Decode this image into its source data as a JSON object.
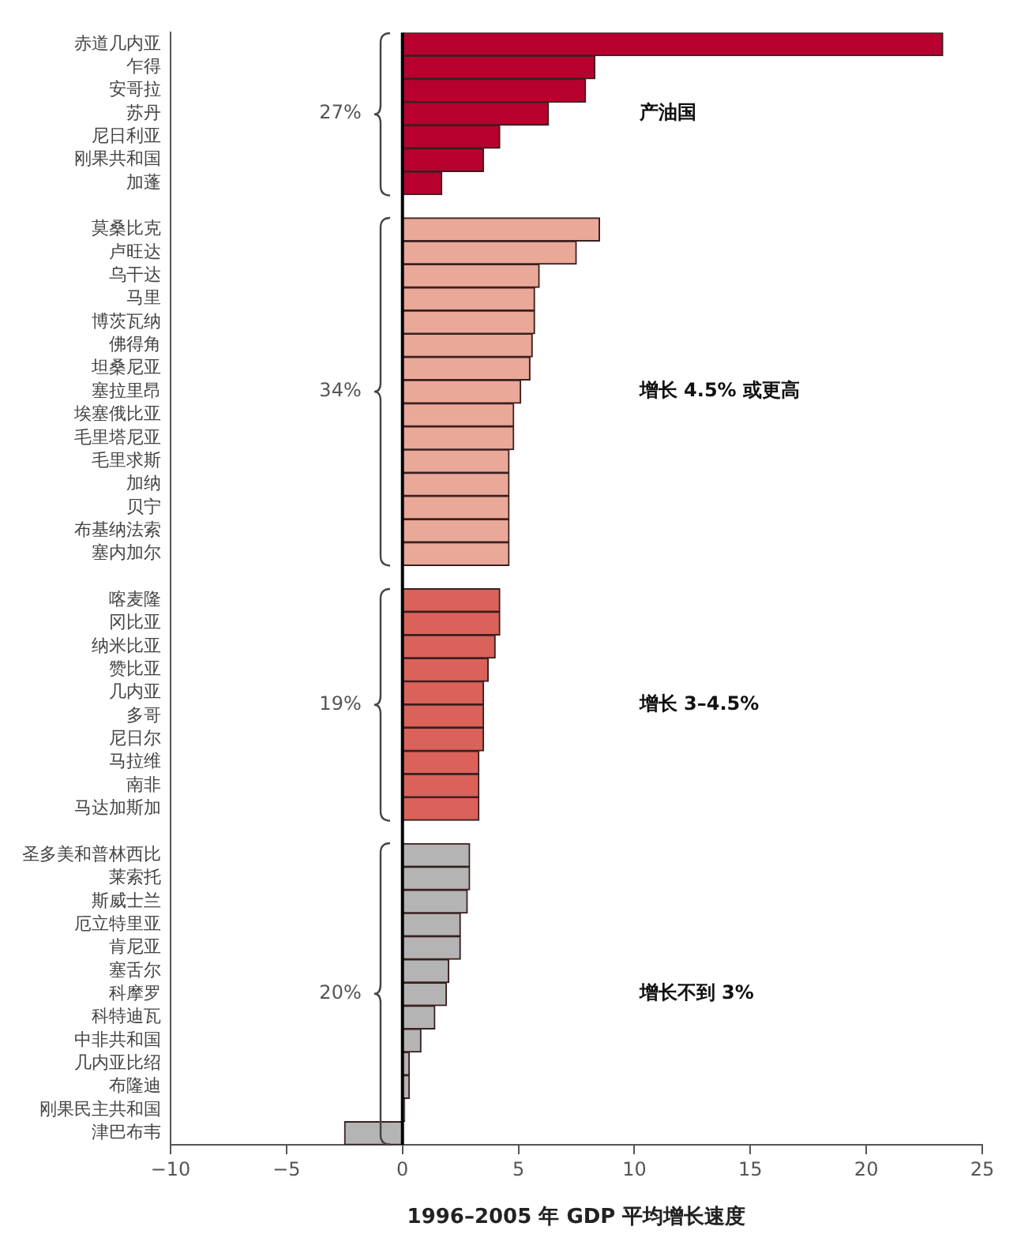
{
  "chart_data": {
    "type": "bar",
    "orientation": "horizontal",
    "xlabel": "1996–2005 年 GDP 平均增长速度",
    "categories": [
      "赤道几内亚",
      "乍得",
      "安哥拉",
      "苏丹",
      "尼日利亚",
      "刚果共和国",
      "加蓬",
      null,
      "莫桑比克",
      "卢旺达",
      "乌干达",
      "马里",
      "博茨瓦纳",
      "佛得角",
      "坦桑尼亚",
      "塞拉里昂",
      "埃塞俄比亚",
      "毛里塔尼亚",
      "毛里求斯",
      "加纳",
      "贝宁",
      "布基纳法索",
      "塞内加尔",
      null,
      "喀麦隆",
      "冈比亚",
      "纳米比亚",
      "赞比亚",
      "几内亚",
      "多哥",
      "尼日尔",
      "马拉维",
      "南非",
      "马达加斯加",
      null,
      "圣多美和普林西比",
      "莱索托",
      "斯威士兰",
      "厄立特里亚",
      "肯尼亚",
      "塞舌尔",
      "科摩罗",
      "科特迪瓦",
      "中非共和国",
      "几内亚比绍",
      "布隆迪",
      "刚果民主共和国",
      "津巴布韦"
    ],
    "series": [
      {
        "name": "产油国",
        "color": "#b8002e",
        "values": [
          23.3,
          8.3,
          7.9,
          6.3,
          4.2,
          3.5,
          1.7,
          null,
          null,
          null,
          null,
          null,
          null,
          null,
          null,
          null,
          null,
          null,
          null,
          null,
          null,
          null,
          null,
          null,
          null,
          null,
          null,
          null,
          null,
          null,
          null,
          null,
          null,
          null,
          null,
          null,
          null,
          null,
          null,
          null,
          null,
          null,
          null,
          null,
          null,
          null,
          null,
          null
        ]
      },
      {
        "name": "增长 4.5% 或更高",
        "color": "#eaa898",
        "values": [
          null,
          null,
          null,
          null,
          null,
          null,
          null,
          null,
          8.5,
          7.5,
          5.9,
          5.7,
          5.7,
          5.6,
          5.5,
          5.1,
          4.8,
          4.8,
          4.6,
          4.6,
          4.6,
          4.6,
          4.6,
          null,
          null,
          null,
          null,
          null,
          null,
          null,
          null,
          null,
          null,
          null,
          null,
          null,
          null,
          null,
          null,
          null,
          null,
          null,
          null,
          null,
          null,
          null,
          null,
          null
        ]
      },
      {
        "name": "增长 3–4.5%",
        "color": "#da625a",
        "values": [
          null,
          null,
          null,
          null,
          null,
          null,
          null,
          null,
          null,
          null,
          null,
          null,
          null,
          null,
          null,
          null,
          null,
          null,
          null,
          null,
          null,
          null,
          null,
          null,
          4.2,
          4.2,
          4.0,
          3.7,
          3.5,
          3.5,
          3.5,
          3.3,
          3.3,
          3.3,
          null,
          null,
          null,
          null,
          null,
          null,
          null,
          null,
          null,
          null,
          null,
          null,
          null,
          null
        ]
      },
      {
        "name": "增长不到 3%",
        "color": "#b4b4b4",
        "values": [
          null,
          null,
          null,
          null,
          null,
          null,
          null,
          null,
          null,
          null,
          null,
          null,
          null,
          null,
          null,
          null,
          null,
          null,
          null,
          null,
          null,
          null,
          null,
          null,
          null,
          null,
          null,
          null,
          null,
          null,
          null,
          null,
          null,
          null,
          null,
          2.9,
          2.9,
          2.8,
          2.5,
          2.5,
          2.0,
          1.9,
          1.4,
          0.8,
          0.3,
          0.3,
          0.1,
          -2.5
        ]
      }
    ],
    "annotations": [
      "27%",
      "34%",
      "19%",
      "20%"
    ],
    "xlim": [
      -10,
      25
    ],
    "xticks": [
      {
        "value": -10,
        "label": "−10"
      },
      {
        "value": -5,
        "label": "−5"
      },
      0,
      5,
      10,
      15,
      20,
      25
    ],
    "ref_lines": [
      {
        "axis": "x",
        "value": 0,
        "color": "#000000"
      }
    ],
    "grid": false,
    "legend": false
  }
}
